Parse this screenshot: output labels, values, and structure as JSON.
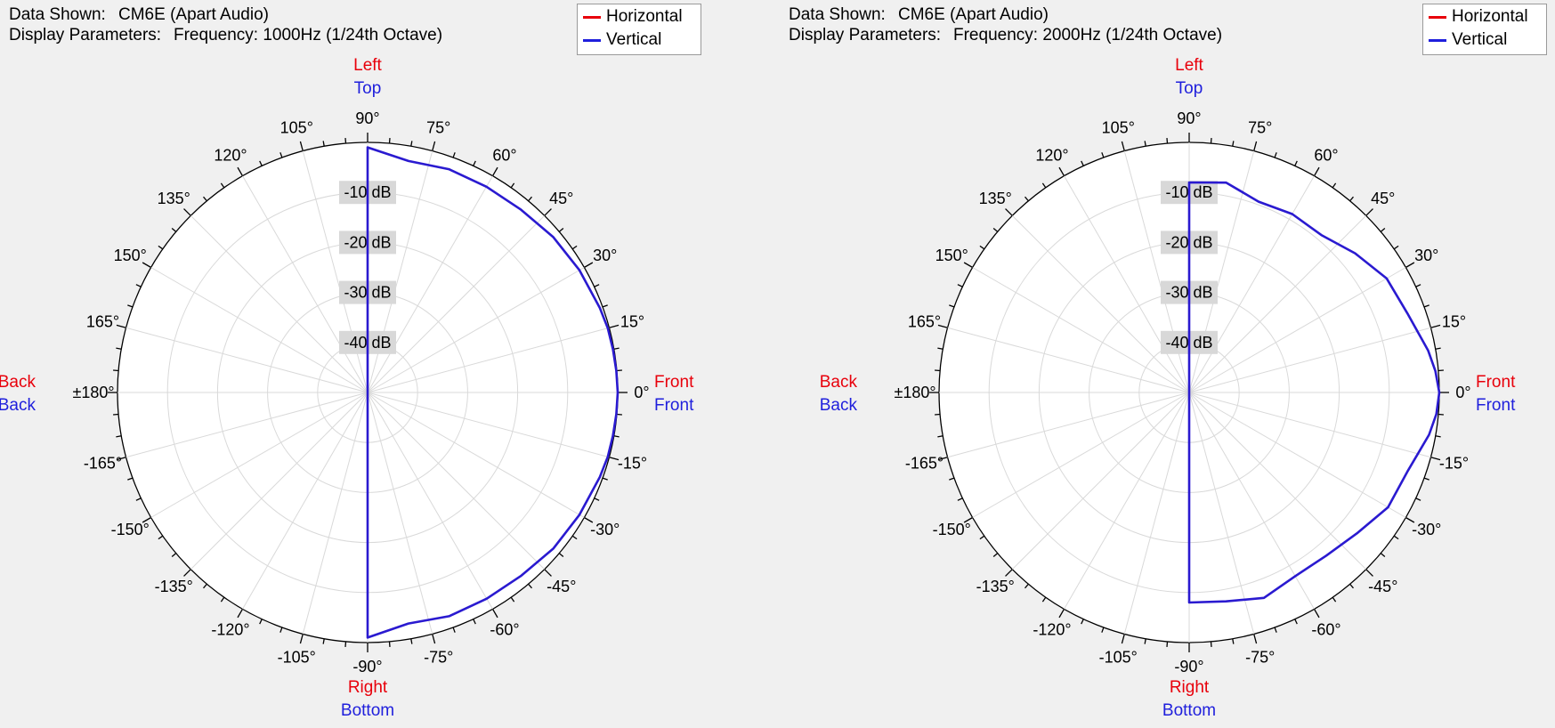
{
  "chart_data": [
    {
      "type": "polar",
      "data_shown_label": "Data Shown:",
      "data_shown_value": "CM6E (Apart Audio)",
      "display_params_label": "Display Parameters:",
      "display_params_value": "Frequency: 1000Hz (1/24th Octave)",
      "legend": [
        {
          "name": "Horizontal",
          "color": "#e8000b"
        },
        {
          "name": "Vertical",
          "color": "#1f1fdc"
        }
      ],
      "radial_range_db": [
        -50,
        0
      ],
      "radial_ticks": [
        "-10 dB",
        "-20 dB",
        "-30 dB",
        "-40 dB"
      ],
      "angle_labels": [
        "0°",
        "15°",
        "30°",
        "45°",
        "60°",
        "75°",
        "90°",
        "105°",
        "120°",
        "135°",
        "150°",
        "165°",
        "±180°",
        "-165°",
        "-150°",
        "-135°",
        "-120°",
        "-105°",
        "-90°",
        "-75°",
        "-60°",
        "-45°",
        "-30°",
        "-15°"
      ],
      "directions": {
        "top": [
          "Left",
          "Top"
        ],
        "bottom": [
          "Right",
          "Bottom"
        ],
        "left": [
          "Back",
          "Back"
        ],
        "right": [
          "Front",
          "Front"
        ]
      },
      "series": [
        {
          "name": "Vertical",
          "angles_deg": [
            90,
            80,
            70,
            60,
            50,
            40,
            30,
            20,
            15,
            10,
            5,
            0,
            -5,
            -10,
            -15,
            -20,
            -30,
            -40,
            -50,
            -60,
            -70,
            -80,
            -90
          ],
          "values_db": [
            -1,
            -3,
            -2.5,
            -2.5,
            -2.3,
            -1.6,
            -1.1,
            -0.6,
            -0.3,
            -0.2,
            -0.1,
            0,
            -0.1,
            -0.2,
            -0.3,
            -0.6,
            -1.1,
            -1.5,
            -2.2,
            -2.4,
            -2.4,
            -3.1,
            -1
          ],
          "closed_through_center": true
        },
        {
          "name": "Horizontal",
          "angles_deg": [],
          "values_db": []
        }
      ]
    },
    {
      "type": "polar",
      "data_shown_label": "Data Shown:",
      "data_shown_value": "CM6E (Apart Audio)",
      "display_params_label": "Display Parameters:",
      "display_params_value": "Frequency: 2000Hz (1/24th Octave)",
      "legend": [
        {
          "name": "Horizontal",
          "color": "#e8000b"
        },
        {
          "name": "Vertical",
          "color": "#1f1fdc"
        }
      ],
      "radial_range_db": [
        -50,
        0
      ],
      "radial_ticks": [
        "-10 dB",
        "-20 dB",
        "-30 dB",
        "-40 dB"
      ],
      "angle_labels": [
        "0°",
        "15°",
        "30°",
        "45°",
        "60°",
        "75°",
        "90°",
        "105°",
        "120°",
        "135°",
        "150°",
        "165°",
        "±180°",
        "-165°",
        "-150°",
        "-135°",
        "-120°",
        "-105°",
        "-90°",
        "-75°",
        "-60°",
        "-45°",
        "-30°",
        "-15°"
      ],
      "directions": {
        "top": [
          "Left",
          "Top"
        ],
        "bottom": [
          "Right",
          "Bottom"
        ],
        "left": [
          "Back",
          "Back"
        ],
        "right": [
          "Front",
          "Front"
        ]
      },
      "series": [
        {
          "name": "Vertical",
          "angles_deg": [
            90,
            80,
            70,
            60,
            50,
            40,
            30,
            20,
            10,
            5,
            0,
            -5,
            -10,
            -20,
            -30,
            -40,
            -50,
            -60,
            -70,
            -80,
            -90
          ],
          "values_db": [
            -8,
            -7.4,
            -9.4,
            -8.8,
            -8.9,
            -6.7,
            -4.4,
            -3.6,
            -1.5,
            -0.6,
            0,
            -0.4,
            -1.3,
            -3.6,
            -4.1,
            -6.2,
            -7.4,
            -7.6,
            -6.3,
            -7.6,
            -8
          ]
        },
        {
          "name": "Horizontal",
          "angles_deg": [],
          "values_db": []
        }
      ]
    }
  ]
}
